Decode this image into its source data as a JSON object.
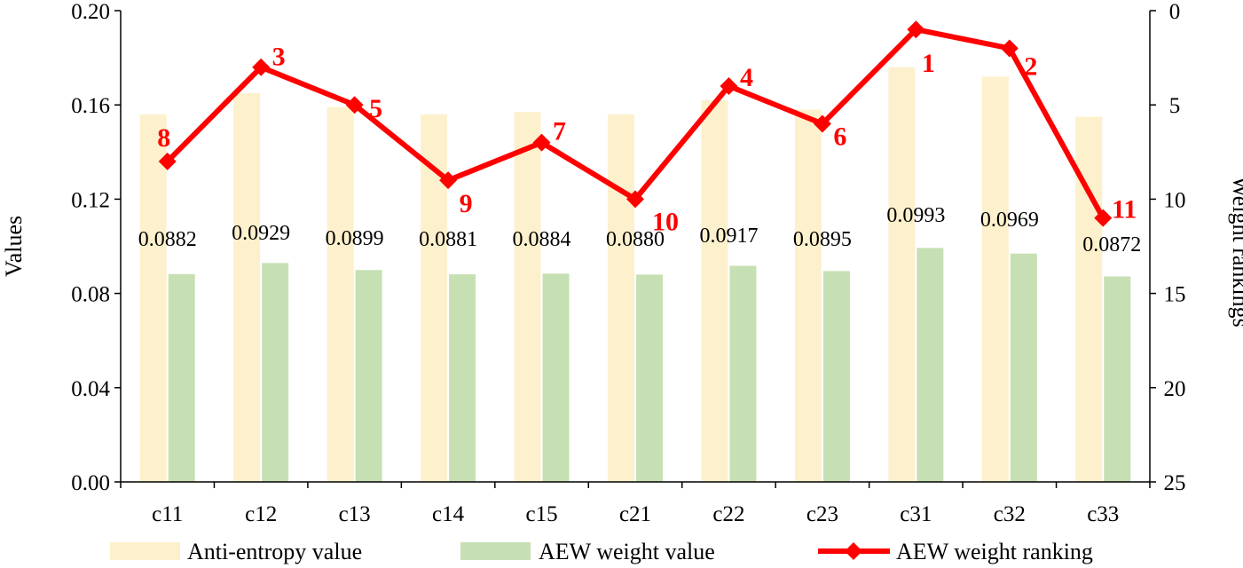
{
  "chart_data": {
    "type": "bar",
    "categories": [
      "c11",
      "c12",
      "c13",
      "c14",
      "c15",
      "c21",
      "c22",
      "c23",
      "c31",
      "c32",
      "c33"
    ],
    "series": [
      {
        "name": "Anti-entropy value",
        "kind": "bar",
        "axis": "left",
        "color": "#fdf0cc",
        "values": [
          0.156,
          0.165,
          0.159,
          0.156,
          0.157,
          0.156,
          0.162,
          0.158,
          0.176,
          0.172,
          0.155
        ]
      },
      {
        "name": "AEW weight value",
        "kind": "bar",
        "axis": "left",
        "color": "#c6e0b4",
        "values": [
          0.0882,
          0.0929,
          0.0899,
          0.0881,
          0.0884,
          0.088,
          0.0917,
          0.0895,
          0.0993,
          0.0969,
          0.0872
        ],
        "labels": [
          "0.0882",
          "0.0929",
          "0.0899",
          "0.0881",
          "0.0884",
          "0.0880",
          "0.0917",
          "0.0895",
          "0.0993",
          "0.0969",
          "0.0872"
        ]
      },
      {
        "name": "AEW weight ranking",
        "kind": "line",
        "axis": "right",
        "color": "#ff0000",
        "values": [
          8,
          3,
          5,
          9,
          7,
          10,
          4,
          6,
          1,
          2,
          11
        ],
        "labels": [
          "8",
          "3",
          "5",
          "9",
          "7",
          "10",
          "4",
          "6",
          "1",
          "2",
          "11"
        ]
      }
    ],
    "ylabel": "Values",
    "ylim": [
      0,
      0.2
    ],
    "yticks": [
      "0.00",
      "0.04",
      "0.08",
      "0.12",
      "0.16",
      "0.20"
    ],
    "y2label": "Weight rankings",
    "y2lim": [
      0,
      25
    ],
    "y2inverted": true,
    "y2ticks": [
      "0",
      "5",
      "10",
      "15",
      "20",
      "25"
    ],
    "legend": "bottom",
    "grid": false
  }
}
